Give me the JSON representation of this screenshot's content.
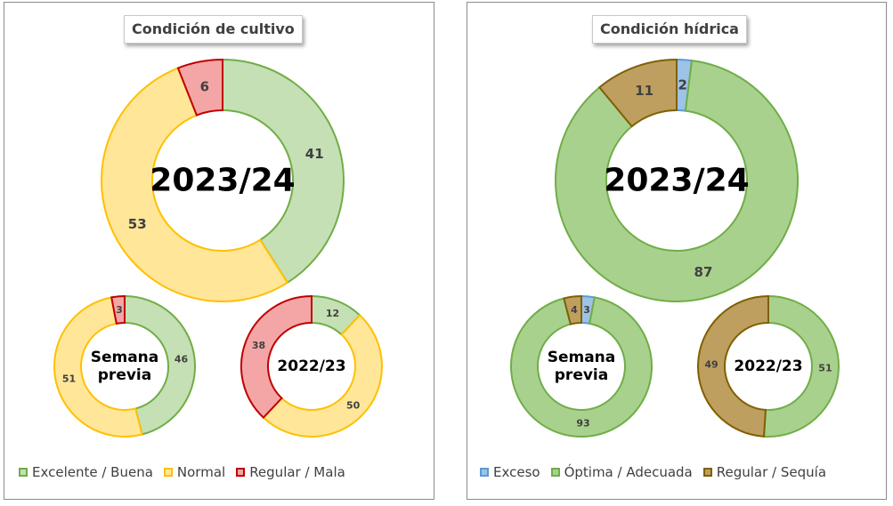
{
  "chart_data": [
    {
      "type": "pie",
      "title": "Condición  de cultivo",
      "legend": [
        "Excelente / Buena",
        "Normal",
        "Regular / Mala"
      ],
      "colors": {
        "fill": [
          "#c5e0b4",
          "#ffe699",
          "#f4a6a6"
        ],
        "stroke": [
          "#70ad47",
          "#ffc000",
          "#c00000"
        ]
      },
      "charts": [
        {
          "center_label": [
            "2023/24"
          ],
          "values": [
            41,
            53,
            6
          ]
        },
        {
          "center_label": [
            "Semana",
            "previa"
          ],
          "values": [
            46,
            51,
            3
          ]
        },
        {
          "center_label": [
            "2022/23"
          ],
          "values": [
            12,
            50,
            38
          ]
        }
      ]
    },
    {
      "type": "pie",
      "title": "Condición  hídrica",
      "legend": [
        "Exceso",
        "Óptima / Adecuada",
        "Regular / Sequía"
      ],
      "colors": {
        "fill": [
          "#9dc3e6",
          "#a9d18e",
          "#bf9f5f"
        ],
        "stroke": [
          "#5b9bd5",
          "#70ad47",
          "#7f6000"
        ]
      },
      "charts": [
        {
          "center_label": [
            "2023/24"
          ],
          "values": [
            2,
            87,
            11
          ]
        },
        {
          "center_label": [
            "Semana",
            "previa"
          ],
          "values": [
            3,
            93,
            4
          ]
        },
        {
          "center_label": [
            "2022/23"
          ],
          "values": [
            0,
            51,
            49
          ]
        }
      ]
    }
  ]
}
